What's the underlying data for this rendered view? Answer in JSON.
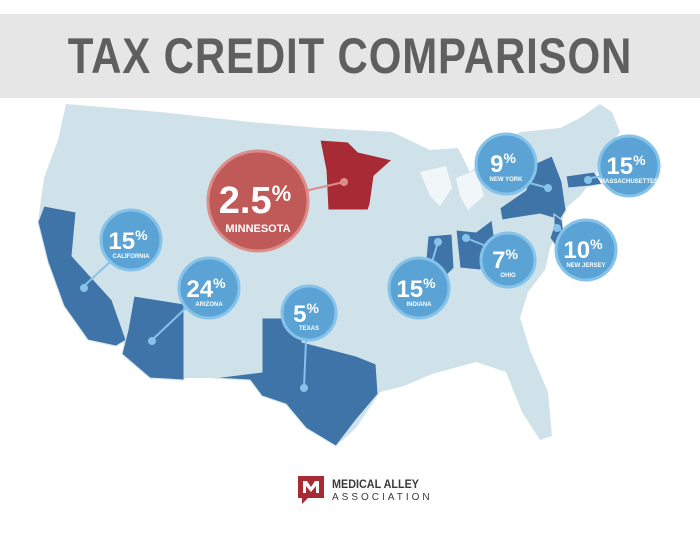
{
  "title": "TAX CREDIT COMPARISON",
  "colors": {
    "land": "#cfe2ea",
    "highlight_blue": "#3f74a8",
    "bubble_blue": "#5aa3d4",
    "bubble_ring": "#86c3ea",
    "highlight_red": "#a72a35",
    "bubble_red": "#c05a58",
    "bubble_red_ring": "#dc8d8a",
    "title_bg": "#e6e6e6",
    "title_text": "#5f5f5f"
  },
  "states": [
    {
      "key": "minnesota",
      "value": "2.5",
      "pct": "%",
      "name": "MINNESOTA",
      "color": "red"
    },
    {
      "key": "california",
      "value": "15",
      "pct": "%",
      "name": "CALIFORNIA",
      "color": "blue"
    },
    {
      "key": "arizona",
      "value": "24",
      "pct": "%",
      "name": "ARIZONA",
      "color": "blue"
    },
    {
      "key": "texas",
      "value": "5",
      "pct": "%",
      "name": "TEXAS",
      "color": "blue"
    },
    {
      "key": "indiana",
      "value": "15",
      "pct": "%",
      "name": "INDIANA",
      "color": "blue"
    },
    {
      "key": "ohio",
      "value": "7",
      "pct": "%",
      "name": "OHIO",
      "color": "blue"
    },
    {
      "key": "new_york",
      "value": "9",
      "pct": "%",
      "name": "NEW YORK",
      "color": "blue"
    },
    {
      "key": "massachusetts",
      "value": "15",
      "pct": "%",
      "name": "MASSACHUSETTES",
      "color": "blue"
    },
    {
      "key": "new_jersey",
      "value": "10",
      "pct": "%",
      "name": "NEW JERSEY",
      "color": "blue"
    }
  ],
  "logo": {
    "line1": "MEDICAL ALLEY",
    "line2": "ASSOCIATION",
    "icon": "medical-alley-logo-icon"
  }
}
